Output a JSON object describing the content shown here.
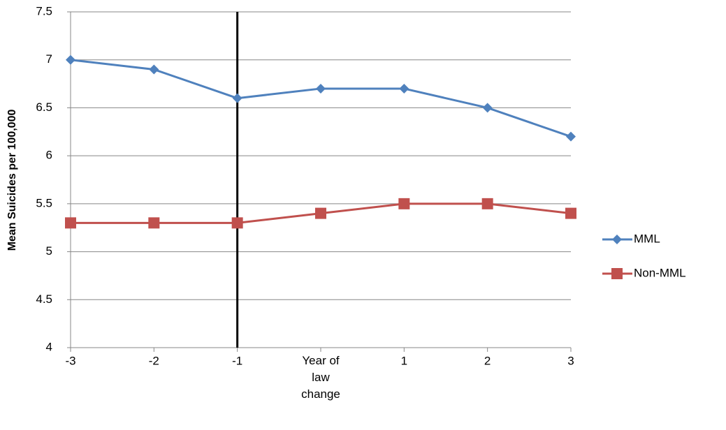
{
  "chart_data": {
    "type": "line",
    "y_label": "Mean Suicides per 100,000",
    "categories": [
      "-3",
      "-2",
      "-1",
      "Year of law change",
      "1",
      "2",
      "3"
    ],
    "series": [
      {
        "name": "MML",
        "color": "#4f81bd",
        "marker": "diamond",
        "values": [
          7,
          6.9,
          6.6,
          6.7,
          6.7,
          6.5,
          6.2
        ]
      },
      {
        "name": "Non-MML",
        "color": "#c0504d",
        "marker": "square",
        "values": [
          5.3,
          5.3,
          5.3,
          5.4,
          5.5,
          5.5,
          5.4
        ]
      }
    ],
    "ylim": [
      4,
      7.5
    ],
    "yticks": [
      4,
      4.5,
      5,
      5.5,
      6,
      6.5,
      7,
      7.5
    ],
    "grid": true,
    "legend": "right",
    "vertical_line": {
      "x": "-1",
      "color": "#000000"
    }
  }
}
